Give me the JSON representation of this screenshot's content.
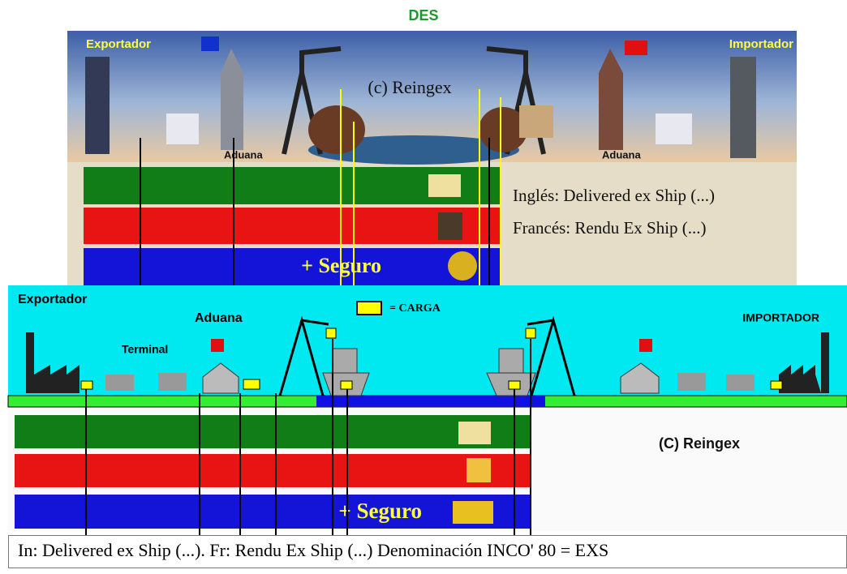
{
  "title": "DES",
  "top_panel": {
    "exporter": "Exportador",
    "importer": "Importador",
    "copyright": "(c) Reingex",
    "customs_left": "Aduana",
    "customs_right": "Aduana",
    "english": "Inglés: Delivered ex Ship (...)",
    "french": "Francés: Rendu Ex Ship (...)",
    "insurance": "+ Seguro"
  },
  "bottom_panel": {
    "exporter": "Exportador",
    "customs": "Aduana",
    "cargo_legend": "= CARGA",
    "terminal": "Terminal",
    "importer": "IMPORTADOR",
    "copyright": "(C) Reingex",
    "insurance": "+ Seguro"
  },
  "caption": "In: Delivered ex Ship (...). Fr: Rendu Ex Ship (...) Denominación INCO' 80 = EXS"
}
